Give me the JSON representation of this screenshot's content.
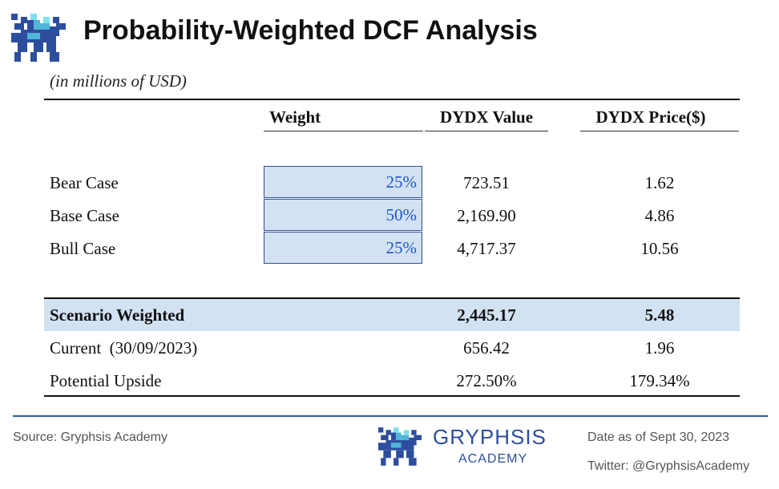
{
  "header": {
    "title": "Probability-Weighted DCF Analysis",
    "subtitle": "(in millions of USD)"
  },
  "table": {
    "columns": [
      "Weight",
      "DYDX Value",
      "DYDX Price($)"
    ],
    "scenarios": [
      {
        "label": "Bear Case",
        "weight": "25%",
        "value": "723.51",
        "price": "1.62"
      },
      {
        "label": "Base Case",
        "weight": "50%",
        "value": "2,169.90",
        "price": "4.86"
      },
      {
        "label": "Bull Case",
        "weight": "25%",
        "value": "4,717.37",
        "price": "10.56"
      }
    ],
    "summary": [
      {
        "label": "Scenario Weighted",
        "value": "2,445.17",
        "price": "5.48"
      },
      {
        "label": "Current  (30/09/2023)",
        "value": "656.42",
        "price": "1.96"
      },
      {
        "label": "Potential Upside",
        "value": "272.50%",
        "price": "179.34%"
      }
    ]
  },
  "footer": {
    "source": "Source: Gryphsis Academy",
    "brand": "GRYPHSIS",
    "brand_sub": "ACADEMY",
    "date": "Date as of Sept 30, 2023",
    "twitter": "Twitter: @GryphsisAcademy"
  },
  "colors": {
    "accent_blue": "#2d4e9e",
    "highlight_fill": "#d3e2f3",
    "weight_text": "#1f57c9"
  },
  "icons": {
    "logo": "gryphon-logo-icon"
  }
}
